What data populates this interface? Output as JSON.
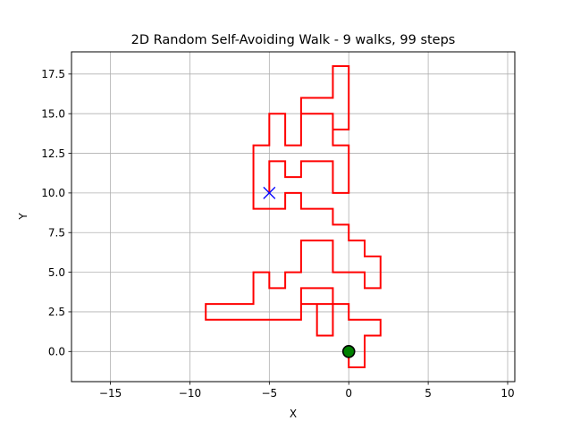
{
  "chart_data": {
    "type": "line",
    "title": "2D Random Self-Avoiding Walk - 9 walks, 99 steps",
    "xlabel": "X",
    "ylabel": "Y",
    "xlim": [
      -17.45,
      10.45
    ],
    "ylim": [
      -1.9,
      18.9
    ],
    "x_ticks": [
      -15,
      -10,
      -5,
      0,
      5,
      10
    ],
    "x_tick_labels": [
      "−15",
      "−10",
      "−5",
      "0",
      "5",
      "10"
    ],
    "y_ticks": [
      0,
      2.5,
      5,
      7.5,
      10,
      12.5,
      15,
      17.5
    ],
    "y_tick_labels": [
      "0.0",
      "2.5",
      "5.0",
      "7.5",
      "10.0",
      "12.5",
      "15.0",
      "17.5"
    ],
    "grid": true,
    "series": [
      {
        "color": "#ff0000",
        "x": [
          0,
          0,
          1,
          1,
          2,
          2,
          0,
          0,
          -1,
          -1,
          -3,
          -3,
          -1,
          -1,
          -2,
          -2,
          -3,
          -3,
          -9,
          -9,
          -6,
          -6,
          -5,
          -5,
          -4,
          -4,
          -3,
          -3,
          -1,
          -1,
          1,
          1,
          2,
          2,
          1,
          1,
          0,
          0,
          -1,
          -1,
          -3,
          -3,
          -4,
          -4,
          -6,
          -6,
          -5,
          -5,
          -4,
          -4,
          -3,
          -3,
          -1,
          -1,
          0,
          0,
          -1,
          -1,
          -3,
          -3,
          -1,
          -1,
          0,
          0,
          -1
        ],
        "y": [
          0,
          -1,
          -1,
          1,
          1,
          2,
          2,
          3,
          3,
          4,
          4,
          3,
          3,
          1,
          1,
          3,
          3,
          2,
          2,
          3,
          3,
          5,
          5,
          4,
          4,
          5,
          5,
          7,
          7,
          5,
          5,
          4,
          4,
          6,
          6,
          7,
          7,
          8,
          8,
          9,
          9,
          10,
          10,
          9,
          9,
          13,
          13,
          15,
          15,
          13,
          13,
          15,
          15,
          14,
          14,
          18,
          18,
          16,
          16,
          15,
          15,
          13,
          13,
          10,
          10
        ],
        "extra_points": [
          [
            -1,
            12
          ],
          [
            -3,
            12
          ],
          [
            -3,
            11
          ],
          [
            -4,
            11
          ],
          [
            -4,
            12
          ],
          [
            -5,
            12
          ],
          [
            -5,
            10
          ]
        ]
      }
    ],
    "start_marker": {
      "x": 0,
      "y": 0,
      "face": "#008000",
      "edge": "#000000",
      "symbol": "circle"
    },
    "end_marker": {
      "x": -5,
      "y": 10,
      "color": "#0000ff",
      "symbol": "x"
    }
  }
}
